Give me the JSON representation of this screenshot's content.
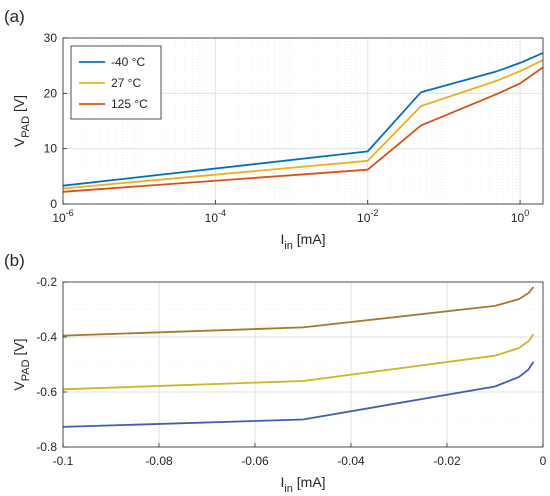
{
  "chart_data": [
    {
      "panel": "(a)",
      "type": "line",
      "title": "",
      "xlabel": {
        "main": "I",
        "sub": "in",
        "unit": " [mA]"
      },
      "ylabel": {
        "main": "V",
        "sub": "PAD",
        "unit": " [V]"
      },
      "xscale": "log",
      "xlim": [
        1e-06,
        2
      ],
      "ylim": [
        0,
        30
      ],
      "xticks": [
        {
          "value": 1e-06,
          "base": "10",
          "exp": "-6"
        },
        {
          "value": 0.0001,
          "base": "10",
          "exp": "-4"
        },
        {
          "value": 0.01,
          "base": "10",
          "exp": "-2"
        },
        {
          "value": 1,
          "base": "10",
          "exp": "0"
        }
      ],
      "yticks": [
        0,
        10,
        20,
        30
      ],
      "grid": true,
      "legend": "top-left",
      "series": [
        {
          "name": "-40 °C",
          "color": "#0072BD",
          "x": [
            1e-06,
            0.01,
            0.05,
            0.5,
            1,
            2
          ],
          "y": [
            3.3,
            9.5,
            20.2,
            24.0,
            25.5,
            27.3
          ]
        },
        {
          "name": "27 °C",
          "color": "#EDB120",
          "x": [
            1e-06,
            0.01,
            0.05,
            0.5,
            1,
            2
          ],
          "y": [
            2.8,
            7.8,
            17.7,
            22.3,
            24.0,
            26.0
          ]
        },
        {
          "name": "125 °C",
          "color": "#D95319",
          "x": [
            1e-06,
            0.01,
            0.05,
            0.5,
            1,
            2
          ],
          "y": [
            2.2,
            6.2,
            14.2,
            19.9,
            21.8,
            24.7
          ]
        }
      ]
    },
    {
      "panel": "(b)",
      "type": "line",
      "title": "",
      "xlabel": {
        "main": "I",
        "sub": "in",
        "unit": " [mA]"
      },
      "ylabel": {
        "main": "V",
        "sub": "PAD",
        "unit": " [V]"
      },
      "xscale": "linear",
      "xlim": [
        -0.1,
        0
      ],
      "ylim": [
        -0.8,
        -0.2
      ],
      "xticks": [
        -0.1,
        -0.08,
        -0.06,
        -0.04,
        -0.02,
        0
      ],
      "yticks": [
        -0.8,
        -0.6,
        -0.4,
        -0.2
      ],
      "grid": true,
      "series": [
        {
          "color": "#A67A2A",
          "x": [
            -0.1,
            -0.05,
            -0.01,
            -0.005,
            -0.003,
            -0.002
          ],
          "y": [
            -0.395,
            -0.365,
            -0.287,
            -0.262,
            -0.24,
            -0.218
          ]
        },
        {
          "color": "#CDB52A",
          "x": [
            -0.1,
            -0.05,
            -0.01,
            -0.005,
            -0.003,
            -0.002
          ],
          "y": [
            -0.59,
            -0.56,
            -0.468,
            -0.44,
            -0.415,
            -0.39
          ]
        },
        {
          "color": "#3F5FB5",
          "x": [
            -0.1,
            -0.05,
            -0.01,
            -0.005,
            -0.003,
            -0.002
          ],
          "y": [
            -0.727,
            -0.7,
            -0.58,
            -0.545,
            -0.518,
            -0.49
          ]
        }
      ]
    }
  ]
}
